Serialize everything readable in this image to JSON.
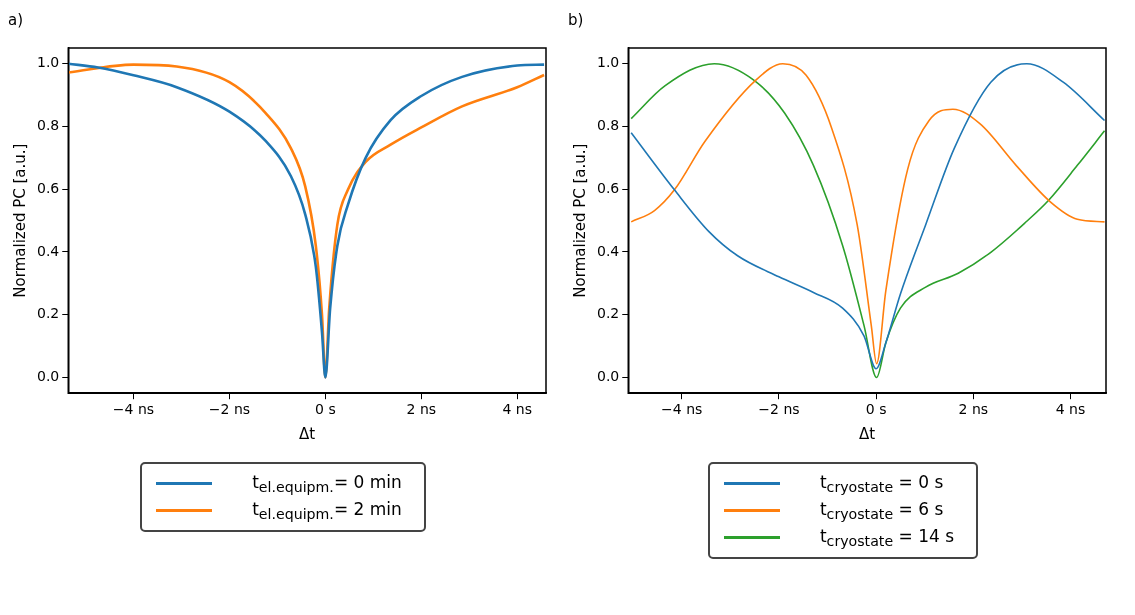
{
  "chart_data": [
    {
      "type": "line",
      "title": "a)",
      "xlabel": "Δt",
      "ylabel": "Normalized PC [a.u.]",
      "xlim": [
        -5.36,
        4.6
      ],
      "ylim": [
        -0.05,
        1.05
      ],
      "xticks": [
        {
          "value": -4,
          "label": "−4 ns"
        },
        {
          "value": -2,
          "label": "−2 ns"
        },
        {
          "value": 0,
          "label": "0 s"
        },
        {
          "value": 2,
          "label": "2 ns"
        },
        {
          "value": 4,
          "label": "4 ns"
        }
      ],
      "yticks": [
        {
          "value": 0,
          "label": "0.0"
        },
        {
          "value": 0.2,
          "label": "0.2"
        },
        {
          "value": 0.4,
          "label": "0.4"
        },
        {
          "value": 0.6,
          "label": "0.6"
        },
        {
          "value": 0.8,
          "label": "0.8"
        },
        {
          "value": 1,
          "label": "1.0"
        }
      ],
      "grid": false,
      "legend": "bottom",
      "marker": "none",
      "line_style": "solid",
      "series": [
        {
          "name": "t$_{el.equipm.}$= 0 min",
          "color": "#1f77b4",
          "x": [
            -5.36,
            -4.74,
            -4,
            -3.1,
            -2,
            -1.24,
            -0.72,
            -0.42,
            -0.2,
            -0.07,
            0,
            0.1,
            0.25,
            0.47,
            0.84,
            1.36,
            2,
            2.85,
            4,
            4.56
          ],
          "values": [
            1.0,
            0.988,
            0.963,
            0.925,
            0.847,
            0.753,
            0.642,
            0.52,
            0.354,
            0.144,
            0.0,
            0.22,
            0.42,
            0.55,
            0.7,
            0.82,
            0.897,
            0.958,
            0.994,
            0.997
          ]
        },
        {
          "name": "t$_{el.equipm.}$= 2 min",
          "color": "#ff7f0e",
          "x": [
            -5.36,
            -4,
            -3.1,
            -2,
            -1.24,
            -0.72,
            -0.42,
            -0.2,
            -0.07,
            0,
            0.08,
            0.25,
            0.47,
            0.84,
            1.36,
            2,
            2.85,
            4,
            4.56
          ],
          "values": [
            0.972,
            0.997,
            0.991,
            0.941,
            0.842,
            0.731,
            0.609,
            0.421,
            0.2,
            0.0,
            0.22,
            0.487,
            0.598,
            0.687,
            0.742,
            0.797,
            0.864,
            0.925,
            0.964
          ]
        }
      ]
    },
    {
      "type": "line",
      "title": "b)",
      "xlabel": "Δt",
      "ylabel": "Normalized PC [a.u.]",
      "xlim": [
        -5.1,
        4.73
      ],
      "ylim": [
        -0.05,
        1.05
      ],
      "xticks": [
        {
          "value": -4,
          "label": "−4 ns"
        },
        {
          "value": -2,
          "label": "−2 ns"
        },
        {
          "value": 0,
          "label": "0 s"
        },
        {
          "value": 2,
          "label": "2 ns"
        },
        {
          "value": 4,
          "label": "4 ns"
        }
      ],
      "yticks": [
        {
          "value": 0,
          "label": "0.0"
        },
        {
          "value": 0.2,
          "label": "0.2"
        },
        {
          "value": 0.4,
          "label": "0.4"
        },
        {
          "value": 0.6,
          "label": "0.6"
        },
        {
          "value": 0.8,
          "label": "0.8"
        },
        {
          "value": 1,
          "label": "1.0"
        }
      ],
      "grid": false,
      "legend": "bottom",
      "marker": "none",
      "line_style": "solid",
      "series": [
        {
          "name": "t$_{cryostate}$ = 0 s",
          "color": "#1f77b4",
          "x": [
            -5.04,
            -4.15,
            -3.44,
            -2.85,
            -2,
            -1.29,
            -0.69,
            -0.25,
            0,
            0.2,
            0.5,
            1.02,
            1.61,
            2.36,
            3.1,
            3.85,
            4.7
          ],
          "values": [
            0.78,
            0.598,
            0.465,
            0.388,
            0.321,
            0.271,
            0.221,
            0.133,
            0.028,
            0.111,
            0.266,
            0.487,
            0.731,
            0.941,
            1.0,
            0.941,
            0.819
          ]
        },
        {
          "name": "t$_{cryostate}$ = 6 s",
          "color": "#ff7f0e",
          "x": [
            -5.04,
            -4.56,
            -4.15,
            -3.52,
            -2.48,
            -1.92,
            -1.44,
            -0.92,
            -0.39,
            -0.1,
            0.01,
            0.2,
            0.65,
            1.09,
            1.58,
            2.14,
            2.88,
            3.59,
            4.14,
            4.7
          ],
          "values": [
            0.496,
            0.532,
            0.598,
            0.753,
            0.947,
            1.0,
            0.963,
            0.797,
            0.487,
            0.166,
            0.044,
            0.277,
            0.664,
            0.819,
            0.855,
            0.808,
            0.676,
            0.559,
            0.504,
            0.496
          ]
        },
        {
          "name": "t$_{cryostate}$ = 14 s",
          "color": "#2ca02c",
          "x": [
            -5.04,
            -4.34,
            -3.33,
            -2.51,
            -1.88,
            -1.29,
            -0.69,
            -0.25,
            0.01,
            0.2,
            0.5,
            1.02,
            1.69,
            2.36,
            3.1,
            3.55,
            4.14,
            4.7
          ],
          "values": [
            0.825,
            0.93,
            1.0,
            0.947,
            0.842,
            0.676,
            0.421,
            0.166,
            0.0,
            0.111,
            0.221,
            0.288,
            0.332,
            0.399,
            0.498,
            0.565,
            0.676,
            0.786
          ]
        }
      ]
    }
  ]
}
